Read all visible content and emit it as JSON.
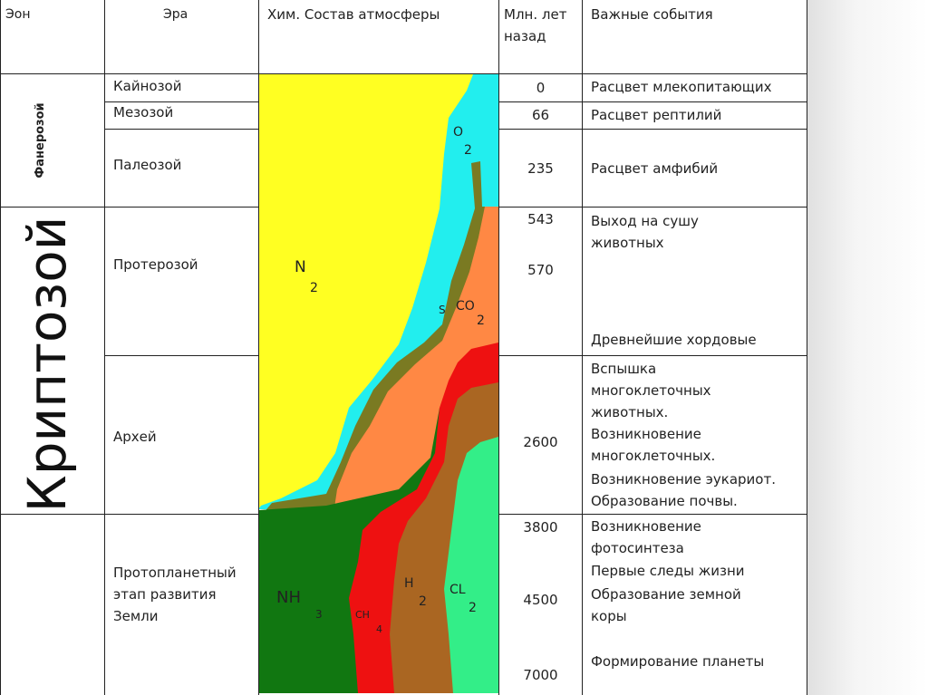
{
  "header": {
    "eon": "Эон",
    "era": "Эра",
    "atmosphere": "Хим. Состав атмосферы",
    "time": "Млн. лет назад",
    "events": "Важные события"
  },
  "eons": [
    "Фанерозой",
    "Криптозой"
  ],
  "eras": [
    "Кайнозой",
    "Мезозой",
    "Палеозой",
    "Протерозой",
    "Архей",
    "Протопланетный этап развития Земли"
  ],
  "years": [
    "0",
    "66",
    "235",
    "543",
    "570",
    "2600",
    "3800",
    "4500",
    "7000"
  ],
  "events": [
    "Расцвет млекопитающих",
    "Расцвет рептилий",
    "Расцвет амфибий",
    "Выход на сушу животных",
    "Древнейшие хордовые",
    "Вспышка многоклеточных животных.",
    "Возникновение многоклеточных.",
    "Возникновение эукариот.",
    "Образование почвы.",
    "Возникновение фотосинтеза",
    "Первые следы жизни",
    "Образование земной коры",
    "Формирование планеты"
  ],
  "gases": [
    {
      "symbol": "O",
      "sub": "2"
    },
    {
      "symbol": "N",
      "sub": "2"
    },
    {
      "symbol": "S"
    },
    {
      "symbol": "CO",
      "sub": "2"
    },
    {
      "symbol": "NH",
      "sub": "3"
    },
    {
      "symbol": "CH",
      "sub": "4"
    },
    {
      "symbol": "H",
      "sub": "2"
    },
    {
      "symbol": "CL",
      "sub": "2"
    }
  ]
}
